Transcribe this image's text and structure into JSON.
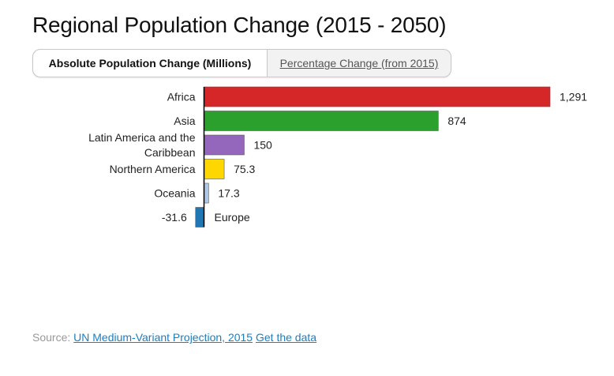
{
  "page": {
    "title": "Regional Population Change (2015 - 2050)",
    "tabs": {
      "absolute": "Absolute Population Change (Millions)",
      "percentage": "Percentage Change (from 2015)"
    },
    "source": {
      "prefix": "Source:",
      "link_label": "UN Medium-Variant Projection, 2015",
      "data_link_label": "Get the data"
    }
  },
  "colors": {
    "accent": "#1a7fc1",
    "zero_line": "#000000"
  },
  "chart_data": {
    "type": "bar",
    "orientation": "horizontal",
    "title": "Regional Population Change (2015 - 2050)",
    "xlabel": "",
    "ylabel": "",
    "unit": "Millions",
    "categories": [
      {
        "name": "Africa",
        "lines": [
          "Africa"
        ],
        "value": 1291,
        "label": "1,291",
        "color": "#d62728"
      },
      {
        "name": "Asia",
        "lines": [
          "Asia"
        ],
        "value": 874,
        "label": "874",
        "color": "#2ca02c"
      },
      {
        "name": "Latin America and the Caribbean",
        "lines": [
          "Latin America and the",
          "Caribbean"
        ],
        "value": 150,
        "label": "150",
        "color": "#9467bd"
      },
      {
        "name": "Northern America",
        "lines": [
          "Northern America"
        ],
        "value": 75.3,
        "label": "75.3",
        "color": "#ffd700"
      },
      {
        "name": "Oceania",
        "lines": [
          "Oceania"
        ],
        "value": 17.3,
        "label": "17.3",
        "color": "#aec7e8"
      },
      {
        "name": "Europe",
        "lines": [
          "Europe"
        ],
        "value": -31.6,
        "label": "-31.6",
        "color": "#1f77b4"
      }
    ],
    "xlim": [
      -31.6,
      1291
    ],
    "grid": false,
    "legend": "none"
  }
}
